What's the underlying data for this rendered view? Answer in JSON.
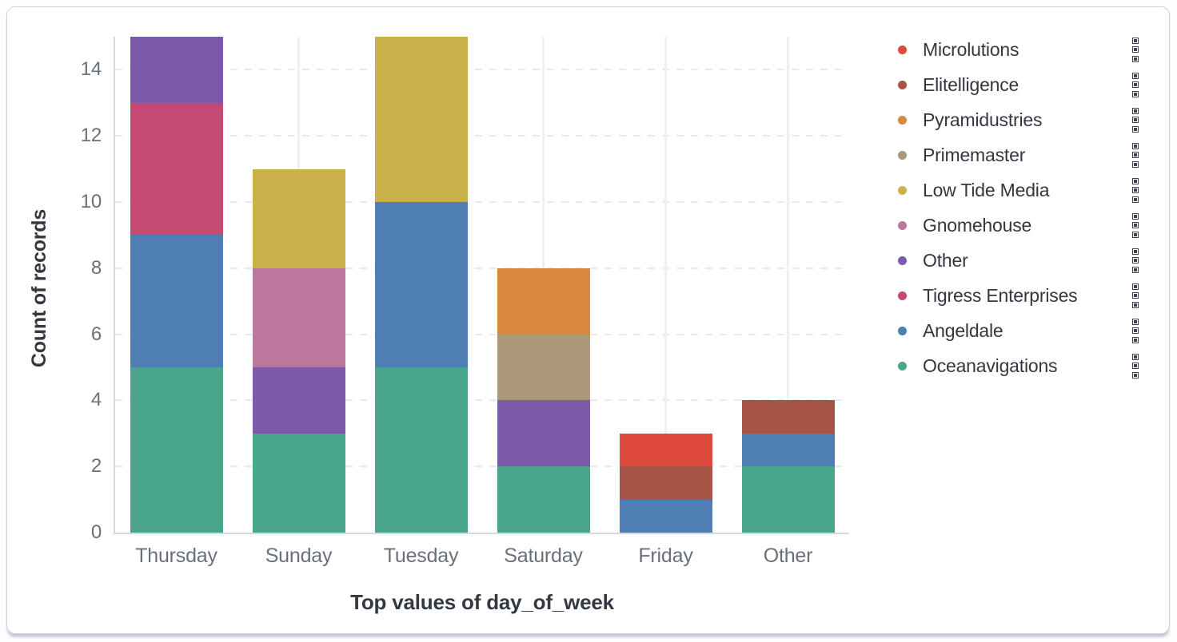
{
  "chart_data": {
    "type": "bar",
    "stacked": true,
    "title": "",
    "xlabel": "Top values of day_of_week",
    "ylabel": "Count of records",
    "categories": [
      "Thursday",
      "Sunday",
      "Tuesday",
      "Saturday",
      "Friday",
      "Other"
    ],
    "series": [
      {
        "name": "Microlutions",
        "color": "#DE4A3C",
        "values": [
          0,
          0,
          0,
          0,
          1,
          0
        ]
      },
      {
        "name": "Elitelligence",
        "color": "#A55446",
        "values": [
          0,
          0,
          0,
          0,
          1,
          1
        ]
      },
      {
        "name": "Pyramidustries",
        "color": "#D7883D",
        "values": [
          0,
          0,
          0,
          2,
          0,
          0
        ]
      },
      {
        "name": "Primemaster",
        "color": "#AA9878",
        "values": [
          0,
          0,
          0,
          2,
          0,
          0
        ]
      },
      {
        "name": "Low Tide Media",
        "color": "#CAB24A",
        "values": [
          0,
          3,
          5,
          0,
          0,
          0
        ]
      },
      {
        "name": "Gnomehouse",
        "color": "#BC789C",
        "values": [
          0,
          3,
          0,
          0,
          0,
          0
        ]
      },
      {
        "name": "Other",
        "color": "#7D59AB",
        "values": [
          2,
          2,
          0,
          2,
          0,
          0
        ]
      },
      {
        "name": "Tigress Enterprises",
        "color": "#C64973",
        "values": [
          4,
          0,
          0,
          0,
          0,
          0
        ]
      },
      {
        "name": "Angeldale",
        "color": "#4E7EB4",
        "values": [
          4,
          0,
          5,
          0,
          1,
          1
        ]
      },
      {
        "name": "Oceanavigations",
        "color": "#49A58B",
        "values": [
          5,
          3,
          5,
          2,
          0,
          2
        ]
      }
    ],
    "stack_order": "reverse-of-series-list (Oceanavigations at bottom)",
    "y_ticks": [
      0,
      2,
      4,
      6,
      8,
      10,
      12,
      14
    ],
    "ylim": [
      0,
      15
    ],
    "grid": true,
    "legend_position": "right"
  },
  "legend": {
    "action_icon": "boxes-vertical-icon"
  }
}
